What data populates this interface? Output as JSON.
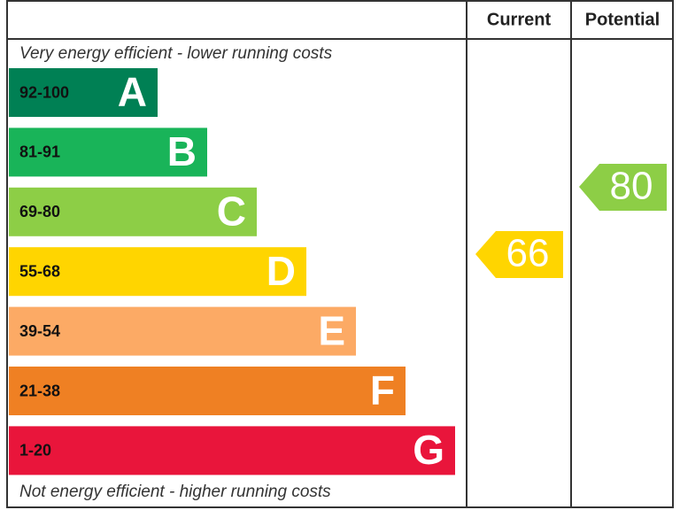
{
  "header": {
    "current": "Current",
    "potential": "Potential"
  },
  "top_note": "Very energy efficient - lower running costs",
  "bottom_note": "Not energy efficient - higher running costs",
  "bands": [
    {
      "range": "92-100",
      "letter": "A",
      "color": "#008054"
    },
    {
      "range": "81-91",
      "letter": "B",
      "color": "#19b459"
    },
    {
      "range": "69-80",
      "letter": "C",
      "color": "#8dce46"
    },
    {
      "range": "55-68",
      "letter": "D",
      "color": "#ffd500"
    },
    {
      "range": "39-54",
      "letter": "E",
      "color": "#fcaa65"
    },
    {
      "range": "21-38",
      "letter": "F",
      "color": "#ef8023"
    },
    {
      "range": "1-20",
      "letter": "G",
      "color": "#e9153b"
    }
  ],
  "current": {
    "value": "66",
    "color": "#ffd500"
  },
  "potential": {
    "value": "80",
    "color": "#8dce46"
  }
}
